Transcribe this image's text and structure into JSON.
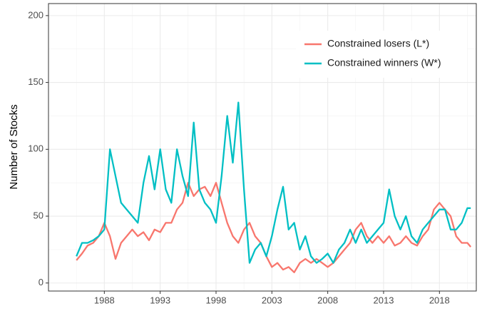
{
  "chart_data": {
    "type": "line",
    "y_label": "Number of Stocks",
    "x": [
      1985.5,
      1986,
      1986.5,
      1987,
      1987.5,
      1988,
      1988.5,
      1989,
      1989.5,
      1990,
      1990.5,
      1991,
      1991.5,
      1992,
      1992.5,
      1993,
      1993.5,
      1994,
      1994.5,
      1995,
      1995.5,
      1996,
      1996.5,
      1997,
      1997.5,
      1998,
      1998.5,
      1999,
      1999.5,
      2000,
      2000.5,
      2001,
      2001.5,
      2002,
      2002.5,
      2003,
      2003.5,
      2004,
      2004.5,
      2005,
      2005.5,
      2006,
      2006.5,
      2007,
      2007.5,
      2008,
      2008.5,
      2009,
      2009.5,
      2010,
      2010.5,
      2011,
      2011.5,
      2012,
      2012.5,
      2013,
      2013.5,
      2014,
      2014.5,
      2015,
      2015.5,
      2016,
      2016.5,
      2017,
      2017.5,
      2018,
      2018.5,
      2019,
      2019.5,
      2020,
      2020.5,
      2020.8
    ],
    "series": [
      {
        "name": "Constrained losers (L*)",
        "color": "#F8766D",
        "values": [
          17,
          22,
          28,
          30,
          35,
          45,
          35,
          18,
          30,
          35,
          40,
          35,
          38,
          32,
          40,
          38,
          45,
          45,
          55,
          60,
          75,
          65,
          70,
          72,
          65,
          75,
          60,
          45,
          35,
          30,
          40,
          45,
          35,
          30,
          20,
          12,
          15,
          10,
          12,
          8,
          15,
          18,
          15,
          18,
          15,
          12,
          15,
          20,
          25,
          30,
          40,
          45,
          35,
          30,
          35,
          30,
          35,
          28,
          30,
          35,
          30,
          28,
          35,
          40,
          55,
          60,
          55,
          50,
          35,
          30,
          30,
          27
        ]
      },
      {
        "name": "Constrained winners (W*)",
        "color": "#00BFC4",
        "values": [
          20,
          30,
          30,
          32,
          35,
          40,
          100,
          80,
          60,
          55,
          50,
          45,
          75,
          95,
          70,
          100,
          70,
          60,
          100,
          80,
          65,
          120,
          70,
          60,
          55,
          45,
          80,
          125,
          90,
          135,
          70,
          15,
          25,
          30,
          20,
          35,
          55,
          72,
          40,
          45,
          25,
          35,
          20,
          15,
          18,
          22,
          15,
          25,
          30,
          40,
          30,
          40,
          30,
          35,
          40,
          45,
          70,
          50,
          40,
          50,
          35,
          30,
          40,
          45,
          50,
          55,
          55,
          40,
          40,
          45,
          56,
          56
        ]
      }
    ],
    "xlim": [
      1983,
      2021.3
    ],
    "ylim": [
      -6,
      209
    ],
    "xticks": [
      1988,
      1993,
      1998,
      2003,
      2008,
      2013,
      2018
    ],
    "yticks": [
      0,
      50,
      100,
      150,
      200
    ],
    "grid": true,
    "legend": "top-right"
  }
}
